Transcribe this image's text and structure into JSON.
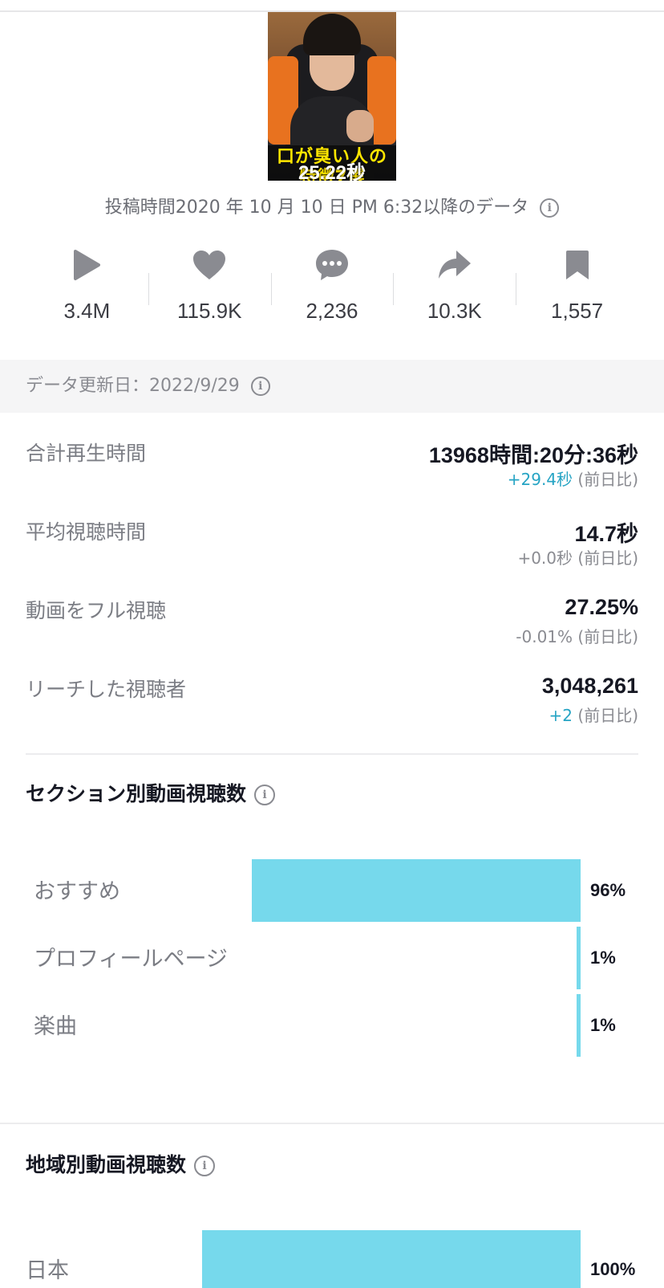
{
  "thumbnail": {
    "caption_line1": "口が臭い人の",
    "caption_line2": "特徴7選",
    "duration": "25.22秒"
  },
  "posted_text": "投稿時間2020 年 10 月 10 日 PM 6:32以降のデータ",
  "stats": [
    {
      "icon": "play-icon",
      "value": "3.4M"
    },
    {
      "icon": "heart-icon",
      "value": "115.9K"
    },
    {
      "icon": "comment-icon",
      "value": "2,236"
    },
    {
      "icon": "share-icon",
      "value": "10.3K"
    },
    {
      "icon": "bookmark-icon",
      "value": "1,557"
    }
  ],
  "update_text": "データ更新日：2022/9/29",
  "metrics": [
    {
      "label": "合計再生時間",
      "value": "13968時間:20分:36秒",
      "delta": "+29.4秒",
      "delta_suffix": " (前日比)",
      "delta_positive": true
    },
    {
      "label": "平均視聴時間",
      "value": "14.7秒",
      "delta": "+0.0秒",
      "delta_suffix": " (前日比)",
      "delta_positive": false
    },
    {
      "label": "動画をフル視聴",
      "value": "27.25%",
      "delta": "-0.01%",
      "delta_suffix": " (前日比)",
      "delta_positive": false
    },
    {
      "label": "リーチした視聴者",
      "value": "3,048,261",
      "delta": "+2",
      "delta_suffix": " (前日比)",
      "delta_positive": true
    }
  ],
  "section_views": {
    "title": "セクション別動画視聴数",
    "rows": [
      {
        "label": "おすすめ",
        "pct": "96%",
        "value": 96
      },
      {
        "label": "プロフィールページ",
        "pct": "1%",
        "value": 1
      },
      {
        "label": "楽曲",
        "pct": "1%",
        "value": 1
      }
    ]
  },
  "region_views": {
    "title": "地域別動画視聴数",
    "rows": [
      {
        "label": "日本",
        "pct": "100%",
        "value": 100
      }
    ]
  },
  "colors": {
    "bar": "#76d9ec",
    "positive_delta": "#26a4c4",
    "icon_gray": "#8a8b91"
  }
}
